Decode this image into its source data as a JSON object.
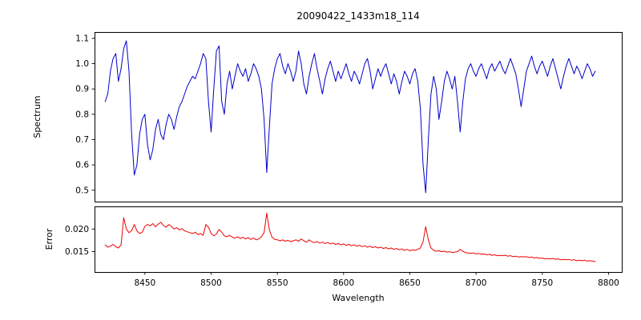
{
  "chart_data": {
    "type": "line",
    "title": "20090422_1433m18_114",
    "xlabel": "Wavelength",
    "grid": false,
    "legend": false,
    "xlim": [
      8412,
      8810
    ],
    "xticks": [
      8450,
      8500,
      8550,
      8600,
      8650,
      8700,
      8750,
      8800
    ],
    "xticklabels": [
      "8450",
      "8500",
      "8550",
      "8600",
      "8650",
      "8700",
      "8750",
      "8800"
    ],
    "x": [
      8420,
      8422,
      8424,
      8426,
      8428,
      8430,
      8432,
      8434,
      8436,
      8438,
      8440,
      8442,
      8444,
      8446,
      8448,
      8450,
      8452,
      8454,
      8456,
      8458,
      8460,
      8462,
      8464,
      8466,
      8468,
      8470,
      8472,
      8474,
      8476,
      8478,
      8480,
      8482,
      8484,
      8486,
      8488,
      8490,
      8492,
      8494,
      8496,
      8498,
      8500,
      8502,
      8504,
      8506,
      8508,
      8510,
      8512,
      8514,
      8516,
      8518,
      8520,
      8522,
      8524,
      8526,
      8528,
      8530,
      8532,
      8534,
      8536,
      8538,
      8540,
      8542,
      8544,
      8546,
      8548,
      8550,
      8552,
      8554,
      8556,
      8558,
      8560,
      8562,
      8564,
      8566,
      8568,
      8570,
      8572,
      8574,
      8576,
      8578,
      8580,
      8582,
      8584,
      8586,
      8588,
      8590,
      8592,
      8594,
      8596,
      8598,
      8600,
      8602,
      8604,
      8606,
      8608,
      8610,
      8612,
      8614,
      8616,
      8618,
      8620,
      8622,
      8624,
      8626,
      8628,
      8630,
      8632,
      8634,
      8636,
      8638,
      8640,
      8642,
      8644,
      8646,
      8648,
      8650,
      8652,
      8654,
      8656,
      8658,
      8660,
      8662,
      8664,
      8666,
      8668,
      8670,
      8672,
      8674,
      8676,
      8678,
      8680,
      8682,
      8684,
      8686,
      8688,
      8690,
      8692,
      8694,
      8696,
      8698,
      8700,
      8702,
      8704,
      8706,
      8708,
      8710,
      8712,
      8714,
      8716,
      8718,
      8720,
      8722,
      8724,
      8726,
      8728,
      8730,
      8732,
      8734,
      8736,
      8738,
      8740,
      8742,
      8744,
      8746,
      8748,
      8750,
      8752,
      8754,
      8756,
      8758,
      8760,
      8762,
      8764,
      8766,
      8768,
      8770,
      8772,
      8774,
      8776,
      8778,
      8780,
      8782,
      8784,
      8786,
      8788,
      8790
    ],
    "series": [
      {
        "name": "Spectrum",
        "ylabel": "Spectrum",
        "color": "#0000cd",
        "ylim": [
          0.455,
          1.125
        ],
        "yticks": [
          0.5,
          0.6,
          0.7,
          0.8,
          0.9,
          1.0,
          1.1
        ],
        "yticklabels": [
          "0.5",
          "0.6",
          "0.7",
          "0.8",
          "0.9",
          "1.0",
          "1.1"
        ],
        "values": [
          0.85,
          0.88,
          0.97,
          1.02,
          1.04,
          0.93,
          0.98,
          1.06,
          1.09,
          0.97,
          0.72,
          0.56,
          0.6,
          0.72,
          0.78,
          0.8,
          0.68,
          0.62,
          0.66,
          0.74,
          0.78,
          0.72,
          0.7,
          0.76,
          0.8,
          0.78,
          0.74,
          0.79,
          0.83,
          0.85,
          0.88,
          0.91,
          0.93,
          0.95,
          0.94,
          0.97,
          1.0,
          1.04,
          1.02,
          0.85,
          0.73,
          0.9,
          1.05,
          1.07,
          0.85,
          0.8,
          0.92,
          0.97,
          0.9,
          0.95,
          1.0,
          0.97,
          0.95,
          0.98,
          0.93,
          0.96,
          1.0,
          0.98,
          0.95,
          0.9,
          0.78,
          0.57,
          0.75,
          0.92,
          0.98,
          1.02,
          1.04,
          0.99,
          0.96,
          1.0,
          0.97,
          0.93,
          0.97,
          1.05,
          1.0,
          0.92,
          0.88,
          0.95,
          1.0,
          1.04,
          0.98,
          0.93,
          0.88,
          0.94,
          0.98,
          1.01,
          0.97,
          0.93,
          0.97,
          0.94,
          0.97,
          1.0,
          0.96,
          0.93,
          0.97,
          0.95,
          0.92,
          0.96,
          1.0,
          1.02,
          0.97,
          0.9,
          0.94,
          0.98,
          0.95,
          0.98,
          1.0,
          0.96,
          0.92,
          0.96,
          0.93,
          0.88,
          0.93,
          0.97,
          0.95,
          0.92,
          0.96,
          0.98,
          0.93,
          0.82,
          0.6,
          0.49,
          0.7,
          0.88,
          0.95,
          0.9,
          0.78,
          0.85,
          0.93,
          0.97,
          0.94,
          0.9,
          0.95,
          0.85,
          0.73,
          0.85,
          0.94,
          0.98,
          1.0,
          0.97,
          0.95,
          0.98,
          1.0,
          0.97,
          0.94,
          0.98,
          1.0,
          0.97,
          0.99,
          1.01,
          0.98,
          0.96,
          0.99,
          1.02,
          0.99,
          0.96,
          0.9,
          0.83,
          0.9,
          0.97,
          1.0,
          1.03,
          0.99,
          0.96,
          0.99,
          1.01,
          0.98,
          0.95,
          0.99,
          1.02,
          0.98,
          0.94,
          0.9,
          0.95,
          0.99,
          1.02,
          0.99,
          0.96,
          0.99,
          0.97,
          0.94,
          0.97,
          1.0,
          0.98,
          0.95,
          0.97
        ]
      },
      {
        "name": "Error",
        "ylabel": "Error",
        "color": "#ee0000",
        "ylim": [
          0.0105,
          0.025
        ],
        "yticks": [
          0.015,
          0.02
        ],
        "yticklabels": [
          "0.015",
          "0.020"
        ],
        "values": [
          0.0165,
          0.016,
          0.0162,
          0.0166,
          0.0161,
          0.0158,
          0.0165,
          0.0225,
          0.02,
          0.0192,
          0.0196,
          0.021,
          0.0196,
          0.019,
          0.0193,
          0.0206,
          0.021,
          0.0207,
          0.0212,
          0.0205,
          0.0211,
          0.0215,
          0.0208,
          0.0204,
          0.021,
          0.0206,
          0.02,
          0.0203,
          0.0198,
          0.0201,
          0.0196,
          0.0194,
          0.0192,
          0.019,
          0.0193,
          0.0188,
          0.019,
          0.0186,
          0.021,
          0.0204,
          0.019,
          0.0185,
          0.0189,
          0.0199,
          0.0193,
          0.0185,
          0.0183,
          0.0186,
          0.0182,
          0.018,
          0.0183,
          0.0179,
          0.0182,
          0.0178,
          0.0181,
          0.0177,
          0.018,
          0.0176,
          0.0178,
          0.0183,
          0.0192,
          0.0235,
          0.0198,
          0.0182,
          0.0177,
          0.0176,
          0.0174,
          0.0176,
          0.0173,
          0.0175,
          0.0172,
          0.0174,
          0.0176,
          0.0173,
          0.0178,
          0.0174,
          0.0171,
          0.0176,
          0.0172,
          0.017,
          0.0172,
          0.0169,
          0.0171,
          0.0168,
          0.017,
          0.0167,
          0.0169,
          0.0166,
          0.0168,
          0.0165,
          0.0167,
          0.0164,
          0.0166,
          0.0163,
          0.0165,
          0.0162,
          0.0164,
          0.0161,
          0.0163,
          0.016,
          0.0162,
          0.0159,
          0.0161,
          0.0158,
          0.016,
          0.0157,
          0.0159,
          0.0156,
          0.0158,
          0.0155,
          0.0157,
          0.0154,
          0.0156,
          0.0153,
          0.0155,
          0.0152,
          0.0154,
          0.0153,
          0.0155,
          0.0158,
          0.0172,
          0.0205,
          0.0176,
          0.0158,
          0.0153,
          0.0151,
          0.0152,
          0.015,
          0.0151,
          0.0149,
          0.015,
          0.0148,
          0.0149,
          0.015,
          0.0155,
          0.0151,
          0.0148,
          0.0147,
          0.0146,
          0.0147,
          0.0145,
          0.0146,
          0.0144,
          0.0145,
          0.0143,
          0.0144,
          0.0142,
          0.0143,
          0.0141,
          0.0142,
          0.0141,
          0.0142,
          0.014,
          0.0141,
          0.0139,
          0.014,
          0.0138,
          0.0139,
          0.0138,
          0.0139,
          0.0137,
          0.0138,
          0.0136,
          0.0137,
          0.0135,
          0.0136,
          0.0134,
          0.0135,
          0.0134,
          0.0135,
          0.0133,
          0.0134,
          0.0132,
          0.0133,
          0.0132,
          0.0133,
          0.0131,
          0.0132,
          0.013,
          0.0131,
          0.013,
          0.0131,
          0.0129,
          0.013,
          0.0129,
          0.0128
        ]
      }
    ]
  }
}
